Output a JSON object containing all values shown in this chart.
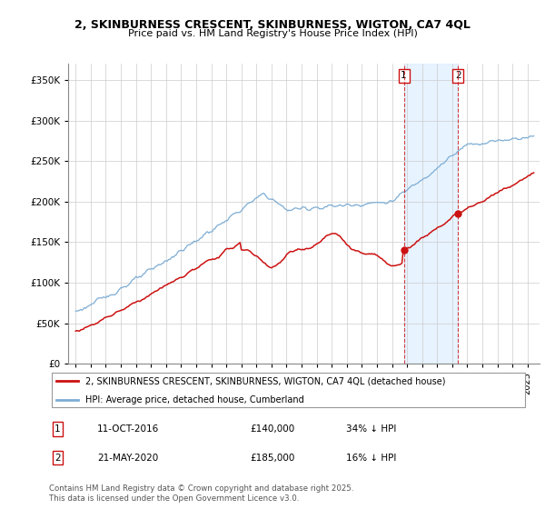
{
  "title_line1": "2, SKINBURNESS CRESCENT, SKINBURNESS, WIGTON, CA7 4QL",
  "title_line2": "Price paid vs. HM Land Registry's House Price Index (HPI)",
  "ylim": [
    0,
    370000
  ],
  "yticks": [
    0,
    50000,
    100000,
    150000,
    200000,
    250000,
    300000,
    350000
  ],
  "ytick_labels": [
    "£0",
    "£50K",
    "£100K",
    "£150K",
    "£200K",
    "£250K",
    "£300K",
    "£350K"
  ],
  "hpi_color": "#7dadd4",
  "price_color": "#cc1111",
  "vline_color": "#cc1111",
  "span_color": "#ddeeff",
  "legend_entry1": "2, SKINBURNESS CRESCENT, SKINBURNESS, WIGTON, CA7 4QL (detached house)",
  "legend_entry2": "HPI: Average price, detached house, Cumberland",
  "sale1_year": 2016.79,
  "sale1_price": 140000,
  "sale2_year": 2020.39,
  "sale2_price": 185000,
  "sale1_date": "11-OCT-2016",
  "sale1_price_str": "£140,000",
  "sale1_hpi": "34% ↓ HPI",
  "sale2_date": "21-MAY-2020",
  "sale2_price_str": "£185,000",
  "sale2_hpi": "16% ↓ HPI",
  "footnote": "Contains HM Land Registry data © Crown copyright and database right 2025.\nThis data is licensed under the Open Government Licence v3.0.",
  "xmin": 1994.5,
  "xmax": 2025.8
}
